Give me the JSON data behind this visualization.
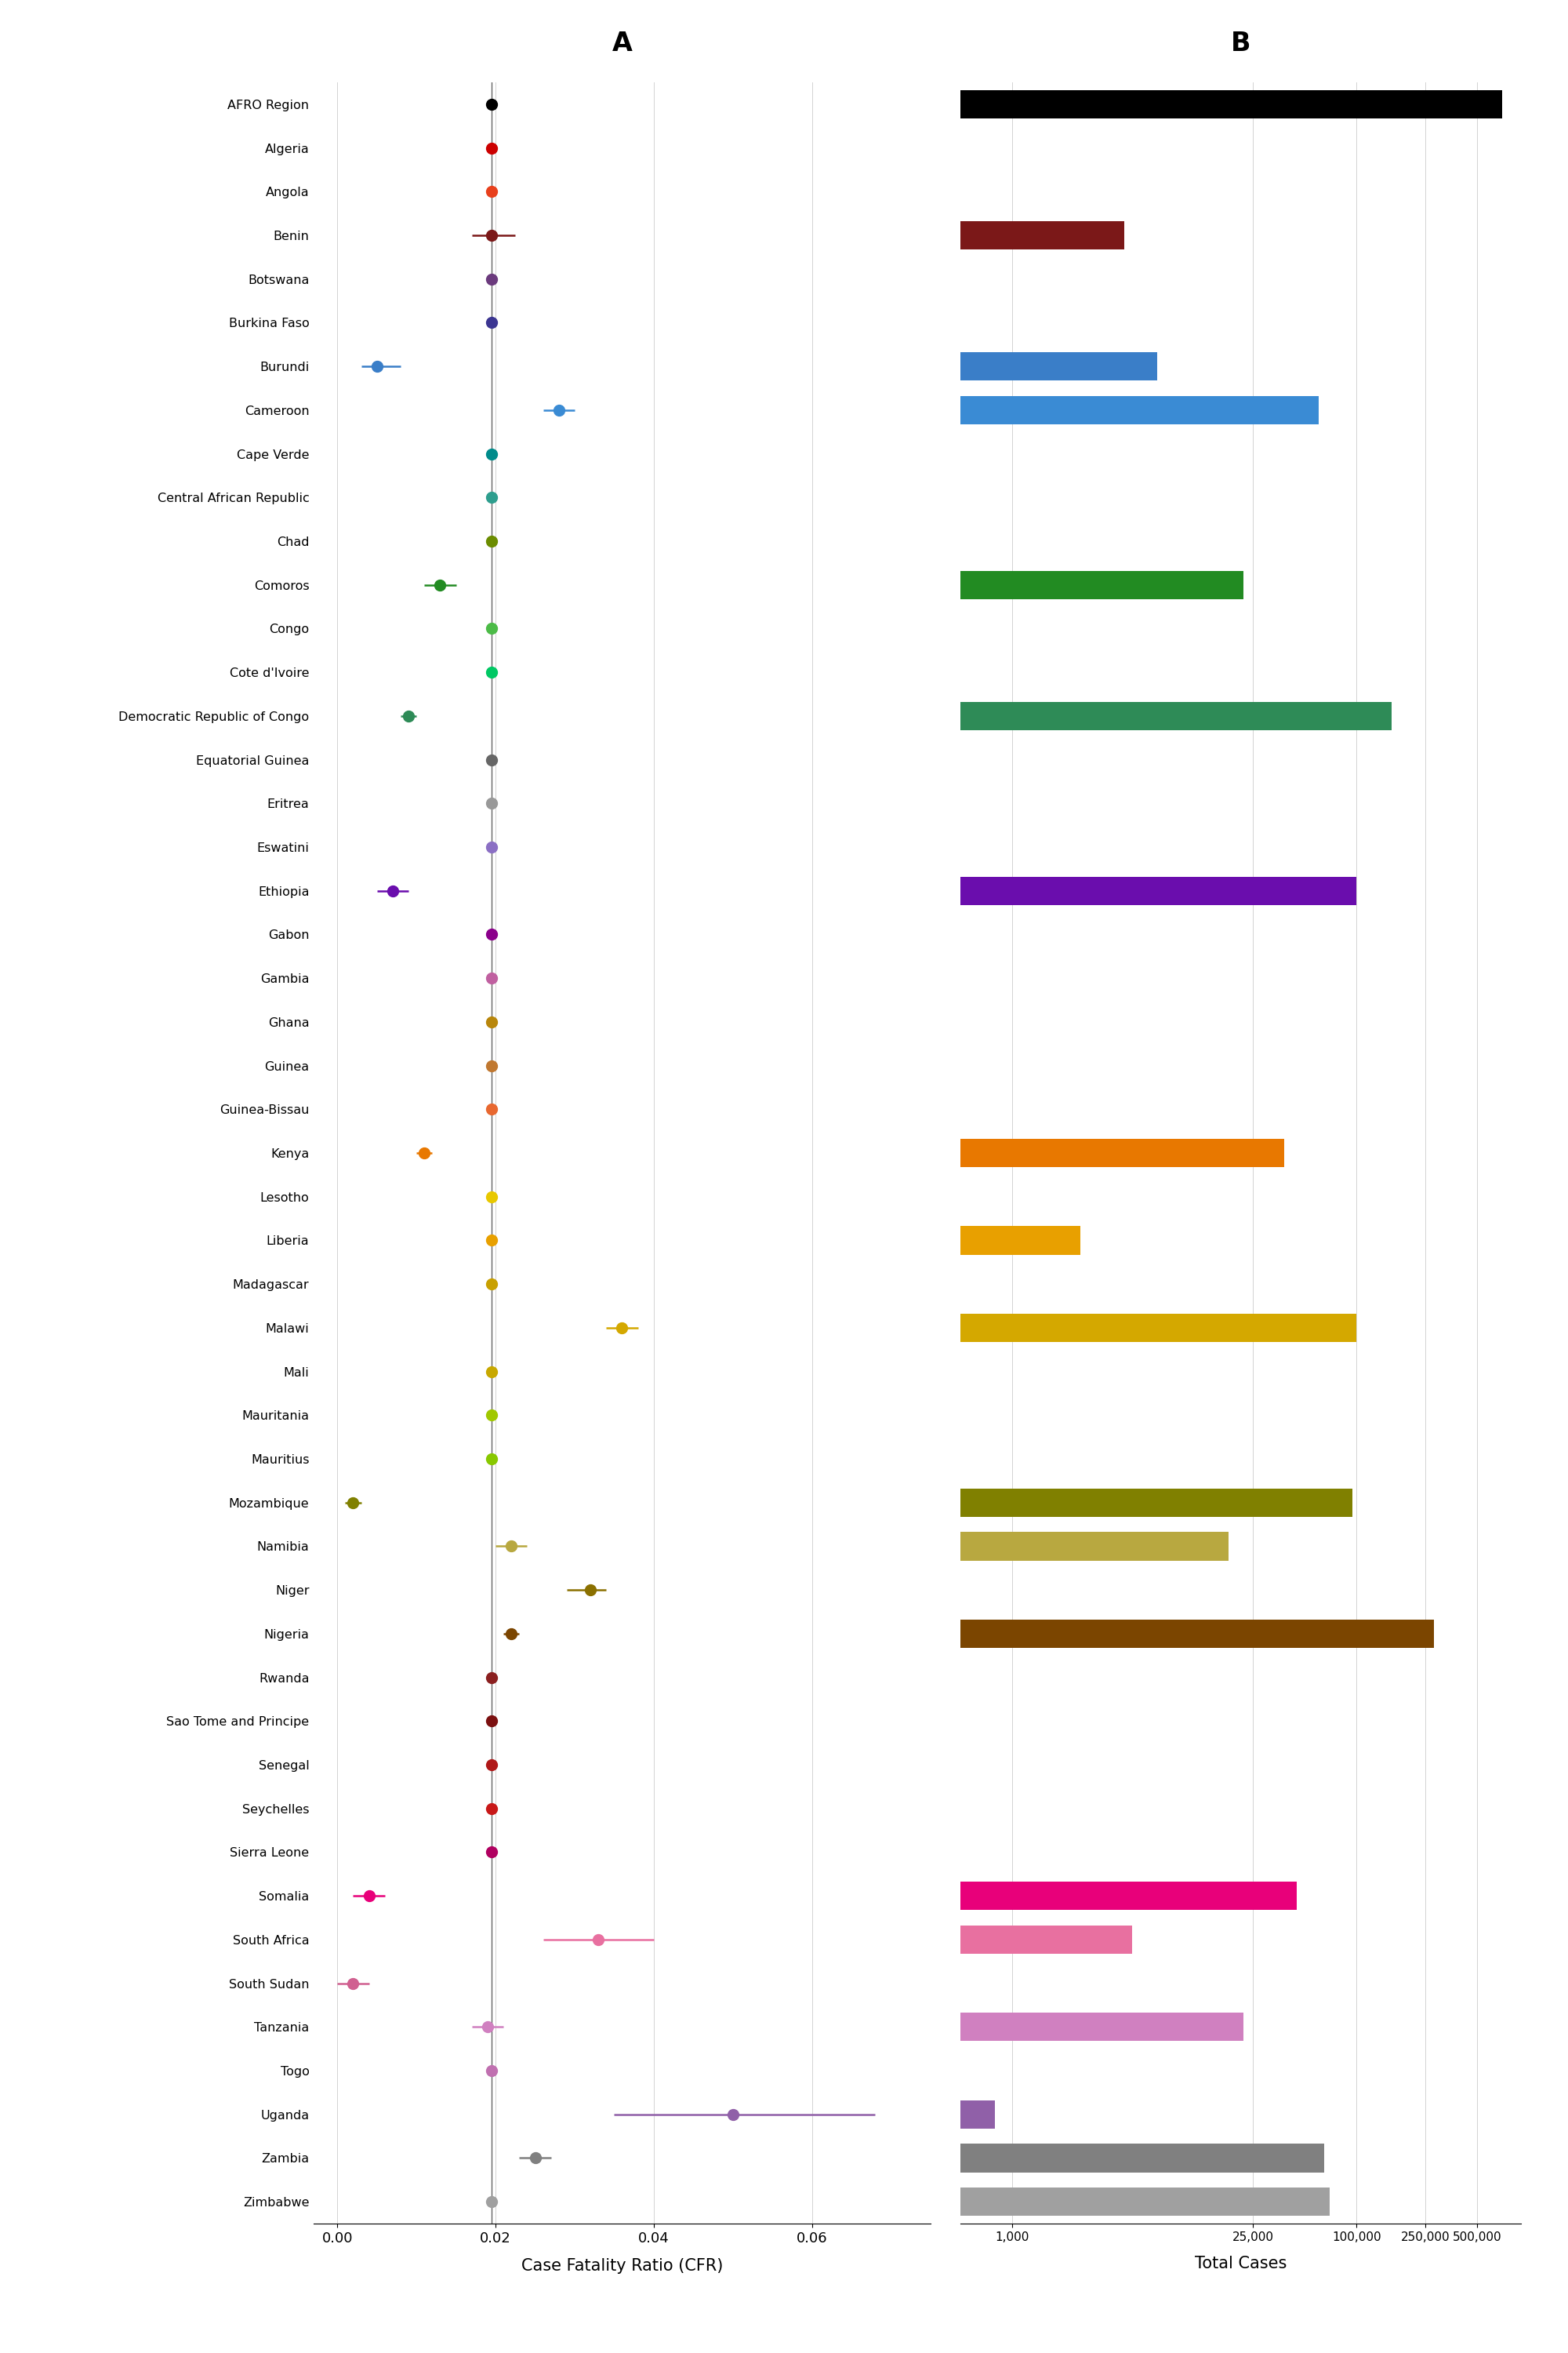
{
  "countries": [
    "AFRO Region",
    "Algeria",
    "Angola",
    "Benin",
    "Botswana",
    "Burkina Faso",
    "Burundi",
    "Cameroon",
    "Cape Verde",
    "Central African Republic",
    "Chad",
    "Comoros",
    "Congo",
    "Cote d'Ivoire",
    "Democratic Republic of Congo",
    "Equatorial Guinea",
    "Eritrea",
    "Eswatini",
    "Ethiopia",
    "Gabon",
    "Gambia",
    "Ghana",
    "Guinea",
    "Guinea-Bissau",
    "Kenya",
    "Lesotho",
    "Liberia",
    "Madagascar",
    "Malawi",
    "Mali",
    "Mauritania",
    "Mauritius",
    "Mozambique",
    "Namibia",
    "Niger",
    "Nigeria",
    "Rwanda",
    "Sao Tome and Principe",
    "Senegal",
    "Seychelles",
    "Sierra Leone",
    "Somalia",
    "South Africa",
    "South Sudan",
    "Tanzania",
    "Togo",
    "Uganda",
    "Zambia",
    "Zimbabwe"
  ],
  "country_colors": {
    "AFRO Region": "#000000",
    "Algeria": "#CC0000",
    "Angola": "#E8401C",
    "Benin": "#7B1818",
    "Botswana": "#6B3A7D",
    "Burkina Faso": "#3B3591",
    "Burundi": "#3A7EC8",
    "Cameroon": "#3A8BD4",
    "Cape Verde": "#008B8B",
    "Central African Republic": "#2E9E8E",
    "Chad": "#6B8C00",
    "Comoros": "#228B22",
    "Congo": "#4CBB47",
    "Cote d'Ivoire": "#00C864",
    "Democratic Republic of Congo": "#2E8B57",
    "Equatorial Guinea": "#666666",
    "Eritrea": "#999999",
    "Eswatini": "#8B6FC4",
    "Ethiopia": "#6A0DAD",
    "Gabon": "#8B008B",
    "Gambia": "#C060A0",
    "Ghana": "#B8860B",
    "Guinea": "#C07830",
    "Guinea-Bissau": "#E86830",
    "Kenya": "#E87800",
    "Lesotho": "#E8C800",
    "Liberia": "#E8A000",
    "Madagascar": "#C8A000",
    "Malawi": "#D4A800",
    "Mali": "#C8A800",
    "Mauritania": "#A0C800",
    "Mauritius": "#88C800",
    "Mozambique": "#808000",
    "Namibia": "#B8A840",
    "Niger": "#8B7000",
    "Nigeria": "#7B4500",
    "Rwanda": "#8B2020",
    "Sao Tome and Principe": "#7B1010",
    "Senegal": "#B01818",
    "Seychelles": "#C81818",
    "Sierra Leone": "#B00060",
    "Somalia": "#E8007A",
    "South Africa": "#E870A0",
    "South Sudan": "#D06090",
    "Tanzania": "#D080C0",
    "Togo": "#C070B0",
    "Uganda": "#9060A8",
    "Zambia": "#808080",
    "Zimbabwe": "#A0A0A0"
  },
  "cfr_data": {
    "AFRO Region": [
      0.0195,
      0.019,
      0.02
    ],
    "Algeria": [
      0.0195,
      0.0195,
      0.0195
    ],
    "Angola": [
      0.0195,
      0.0195,
      0.0195
    ],
    "Benin": [
      0.0195,
      0.017,
      0.0225
    ],
    "Botswana": [
      0.0195,
      0.0195,
      0.0195
    ],
    "Burkina Faso": [
      0.0195,
      0.0195,
      0.0195
    ],
    "Burundi": [
      0.005,
      0.003,
      0.008
    ],
    "Cameroon": [
      0.028,
      0.026,
      0.03
    ],
    "Cape Verde": [
      0.0195,
      0.0195,
      0.0195
    ],
    "Central African Republic": [
      0.0195,
      0.0195,
      0.0195
    ],
    "Chad": [
      0.0195,
      0.0195,
      0.0195
    ],
    "Comoros": [
      0.013,
      0.011,
      0.015
    ],
    "Congo": [
      0.0195,
      0.0195,
      0.0195
    ],
    "Cote d'Ivoire": [
      0.0195,
      0.0195,
      0.0195
    ],
    "Democratic Republic of Congo": [
      0.009,
      0.008,
      0.01
    ],
    "Equatorial Guinea": [
      0.0195,
      0.0195,
      0.0195
    ],
    "Eritrea": [
      0.0195,
      0.0195,
      0.0195
    ],
    "Eswatini": [
      0.0195,
      0.0195,
      0.0195
    ],
    "Ethiopia": [
      0.007,
      0.005,
      0.009
    ],
    "Gabon": [
      0.0195,
      0.0195,
      0.0195
    ],
    "Gambia": [
      0.0195,
      0.0195,
      0.0195
    ],
    "Ghana": [
      0.0195,
      0.0195,
      0.0195
    ],
    "Guinea": [
      0.0195,
      0.0195,
      0.0195
    ],
    "Guinea-Bissau": [
      0.0195,
      0.0195,
      0.0195
    ],
    "Kenya": [
      0.011,
      0.01,
      0.012
    ],
    "Lesotho": [
      0.0195,
      0.0195,
      0.0195
    ],
    "Liberia": [
      0.0195,
      0.0195,
      0.0195
    ],
    "Madagascar": [
      0.0195,
      0.0195,
      0.0195
    ],
    "Malawi": [
      0.036,
      0.034,
      0.038
    ],
    "Mali": [
      0.0195,
      0.0195,
      0.0195
    ],
    "Mauritania": [
      0.0195,
      0.0195,
      0.0195
    ],
    "Mauritius": [
      0.0195,
      0.0195,
      0.0195
    ],
    "Mozambique": [
      0.002,
      0.001,
      0.003
    ],
    "Namibia": [
      0.022,
      0.02,
      0.024
    ],
    "Niger": [
      0.032,
      0.029,
      0.034
    ],
    "Nigeria": [
      0.022,
      0.021,
      0.023
    ],
    "Rwanda": [
      0.0195,
      0.0195,
      0.0195
    ],
    "Sao Tome and Principe": [
      0.0195,
      0.0195,
      0.0195
    ],
    "Senegal": [
      0.0195,
      0.0195,
      0.0195
    ],
    "Seychelles": [
      0.0195,
      0.0195,
      0.0195
    ],
    "Sierra Leone": [
      0.0195,
      0.0195,
      0.0195
    ],
    "Somalia": [
      0.004,
      0.002,
      0.006
    ],
    "South Africa": [
      0.033,
      0.026,
      0.04
    ],
    "South Sudan": [
      0.002,
      0.0,
      0.004
    ],
    "Tanzania": [
      0.019,
      0.017,
      0.021
    ],
    "Togo": [
      0.0195,
      0.0195,
      0.0195
    ],
    "Uganda": [
      0.05,
      0.035,
      0.068
    ],
    "Zambia": [
      0.025,
      0.023,
      0.027
    ],
    "Zimbabwe": [
      0.0195,
      0.0195,
      0.0195
    ]
  },
  "total_cases": {
    "AFRO Region": 700000,
    "Algeria": 0,
    "Angola": 0,
    "Benin": 4500,
    "Botswana": 0,
    "Burkina Faso": 0,
    "Burundi": 7000,
    "Cameroon": 60000,
    "Cape Verde": 0,
    "Central African Republic": 0,
    "Chad": 0,
    "Comoros": 22000,
    "Congo": 0,
    "Cote d'Ivoire": 0,
    "Democratic Republic of Congo": 160000,
    "Equatorial Guinea": 0,
    "Eritrea": 0,
    "Eswatini": 0,
    "Ethiopia": 100000,
    "Gabon": 0,
    "Gambia": 0,
    "Ghana": 0,
    "Guinea": 0,
    "Guinea-Bissau": 0,
    "Kenya": 38000,
    "Lesotho": 0,
    "Liberia": 2500,
    "Madagascar": 0,
    "Malawi": 100000,
    "Mali": 0,
    "Mauritania": 0,
    "Mauritius": 0,
    "Mozambique": 95000,
    "Namibia": 18000,
    "Niger": 0,
    "Nigeria": 280000,
    "Rwanda": 0,
    "Sao Tome and Principe": 0,
    "Senegal": 0,
    "Seychelles": 0,
    "Sierra Leone": 0,
    "Somalia": 45000,
    "South Africa": 5000,
    "South Sudan": 0,
    "Tanzania": 22000,
    "Togo": 0,
    "Uganda": 800,
    "Zambia": 65000,
    "Zimbabwe": 70000
  },
  "xlabel_a": "Case Fatality Ratio (CFR)",
  "xlabel_b": "Total Cases",
  "cfr_mean": 0.0195
}
